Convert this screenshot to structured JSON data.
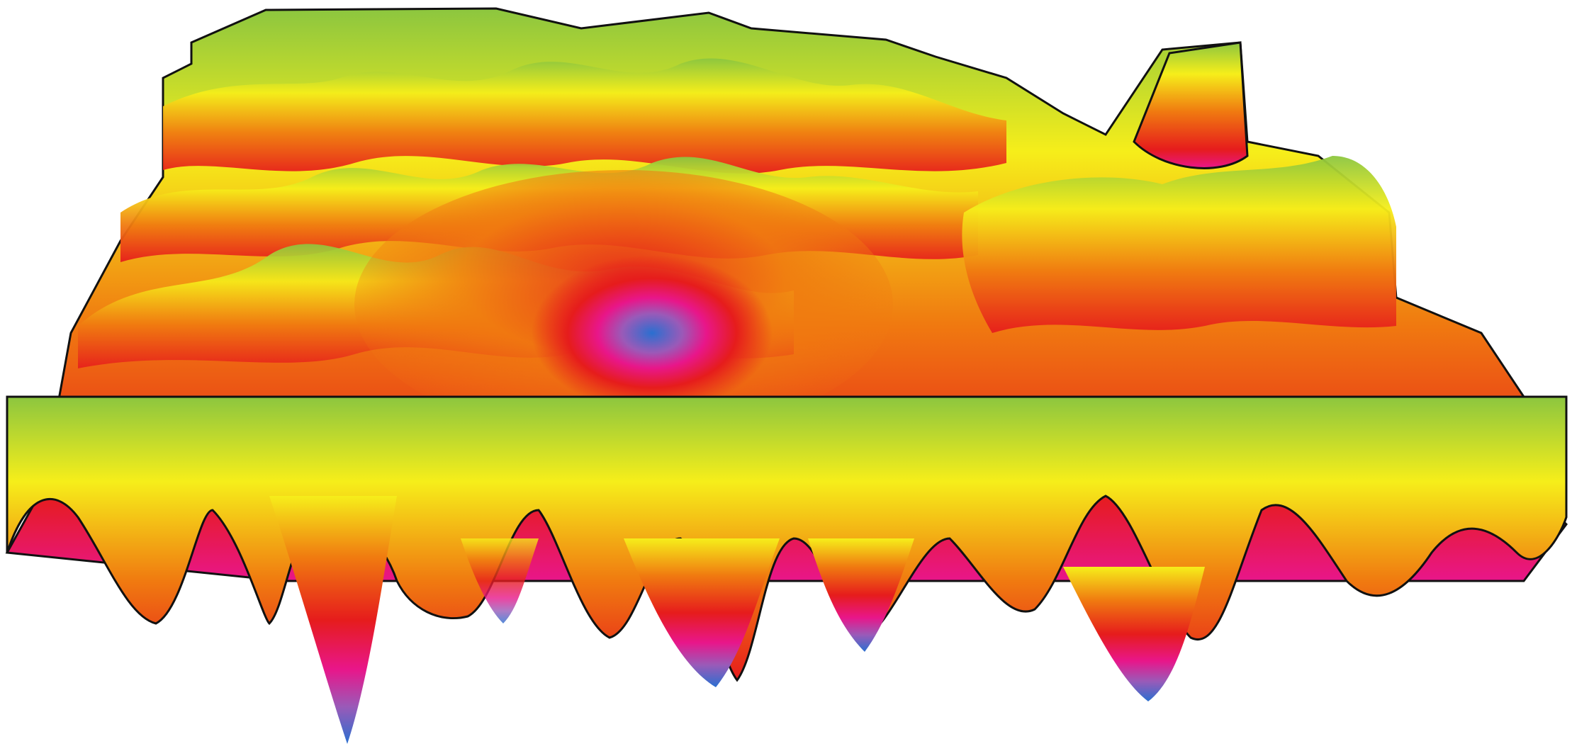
{
  "figure": {
    "kind": "3d-surface-render",
    "colormap": [
      "#2a6fd0",
      "#9a5ab8",
      "#e8168a",
      "#e61c1c",
      "#f07a10",
      "#f6ee1a",
      "#8cc63f"
    ],
    "background": "#ffffff",
    "outline": "#111111"
  }
}
